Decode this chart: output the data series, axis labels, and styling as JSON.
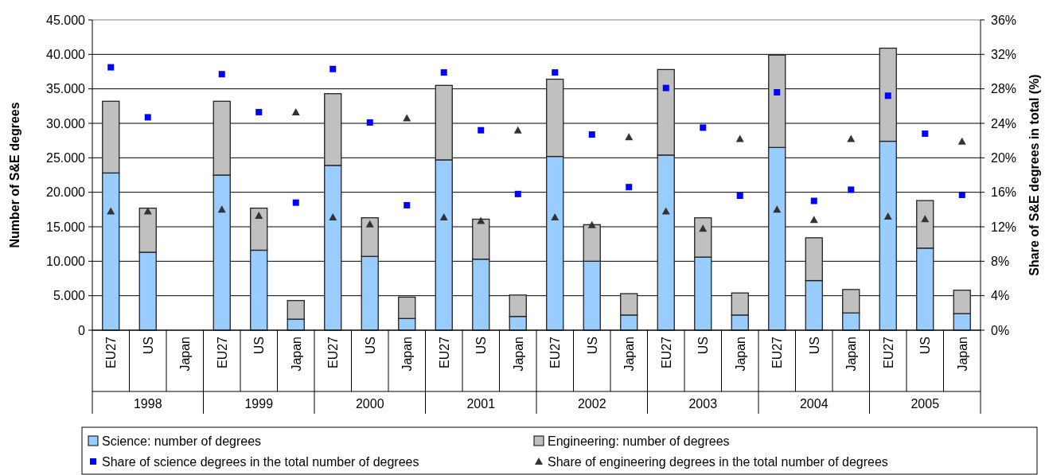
{
  "chart_data": {
    "type": "bar",
    "stacked": true,
    "categories": [
      "EU27",
      "US",
      "Japan",
      "EU27",
      "US",
      "Japan",
      "EU27",
      "US",
      "Japan",
      "EU27",
      "US",
      "Japan",
      "EU27",
      "US",
      "Japan",
      "EU27",
      "US",
      "Japan",
      "EU27",
      "US",
      "Japan",
      "EU27",
      "US",
      "Japan"
    ],
    "annotations": [
      "1998",
      "1999",
      "2000",
      "2001",
      "2002",
      "2003",
      "2004",
      "2005"
    ],
    "ylabel": "Number of S&E degrees",
    "y2label": "Share of S&E degrees in total (%)",
    "ylim": [
      0,
      45000
    ],
    "yticks": [
      0,
      {
        "value": 5000,
        "label": "5.000"
      },
      {
        "value": 10000,
        "label": "10.000"
      },
      {
        "value": 15000,
        "label": "15.000"
      },
      {
        "value": 20000,
        "label": "20.000"
      },
      {
        "value": 25000,
        "label": "25.000"
      },
      {
        "value": 30000,
        "label": "30.000"
      },
      {
        "value": 35000,
        "label": "35.000"
      },
      {
        "value": 40000,
        "label": "40.000"
      },
      {
        "value": 45000,
        "label": "45.000"
      }
    ],
    "y2lim": [
      0,
      36
    ],
    "y2ticks": [
      {
        "value": 0,
        "label": "0%"
      },
      {
        "value": 4,
        "label": "4%"
      },
      {
        "value": 8,
        "label": "8%"
      },
      {
        "value": 12,
        "label": "12%"
      },
      {
        "value": 16,
        "label": "16%"
      },
      {
        "value": 20,
        "label": "20%"
      },
      {
        "value": 24,
        "label": "24%"
      },
      {
        "value": 28,
        "label": "28%"
      },
      {
        "value": 32,
        "label": "32%"
      },
      {
        "value": 36,
        "label": "36%"
      }
    ],
    "grid": "y",
    "legend": "bottom",
    "series": [
      {
        "name": "Science: number of degrees",
        "type": "bar",
        "color": "#99ccff",
        "values": [
          22800,
          11300,
          null,
          22500,
          11600,
          1600,
          23900,
          10700,
          1700,
          24700,
          10300,
          2000,
          25200,
          10000,
          2200,
          25400,
          10600,
          2200,
          26500,
          7200,
          2500,
          27400,
          11900,
          2400
        ]
      },
      {
        "name": "Engineering: number of degrees",
        "type": "bar",
        "color": "#c0c0c0",
        "values": [
          10400,
          6400,
          null,
          10700,
          6100,
          2700,
          10400,
          5600,
          3100,
          10800,
          5800,
          3100,
          11200,
          5300,
          3100,
          12400,
          5700,
          3200,
          13400,
          6200,
          3400,
          13500,
          6900,
          3400
        ]
      },
      {
        "name": "Share of science degrees in the total number of degrees",
        "type": "scatter",
        "axis": "y2",
        "marker": "square",
        "color": "#0000ff",
        "values": [
          30.5,
          24.7,
          null,
          29.7,
          25.3,
          14.8,
          30.3,
          24.1,
          14.5,
          29.9,
          23.2,
          15.8,
          29.9,
          22.7,
          16.6,
          28.1,
          23.5,
          15.6,
          27.6,
          15.0,
          16.3,
          27.2,
          22.8,
          15.7
        ]
      },
      {
        "name": "Share of engineering degrees in the total number of degrees",
        "type": "scatter",
        "axis": "y2",
        "marker": "triangle",
        "color": "#333333",
        "values": [
          13.8,
          13.8,
          null,
          14.0,
          13.3,
          25.3,
          13.1,
          12.3,
          24.6,
          13.1,
          12.7,
          23.2,
          13.1,
          12.2,
          22.4,
          13.8,
          11.8,
          22.2,
          14.0,
          12.8,
          22.2,
          13.2,
          12.9,
          21.9
        ]
      }
    ]
  }
}
